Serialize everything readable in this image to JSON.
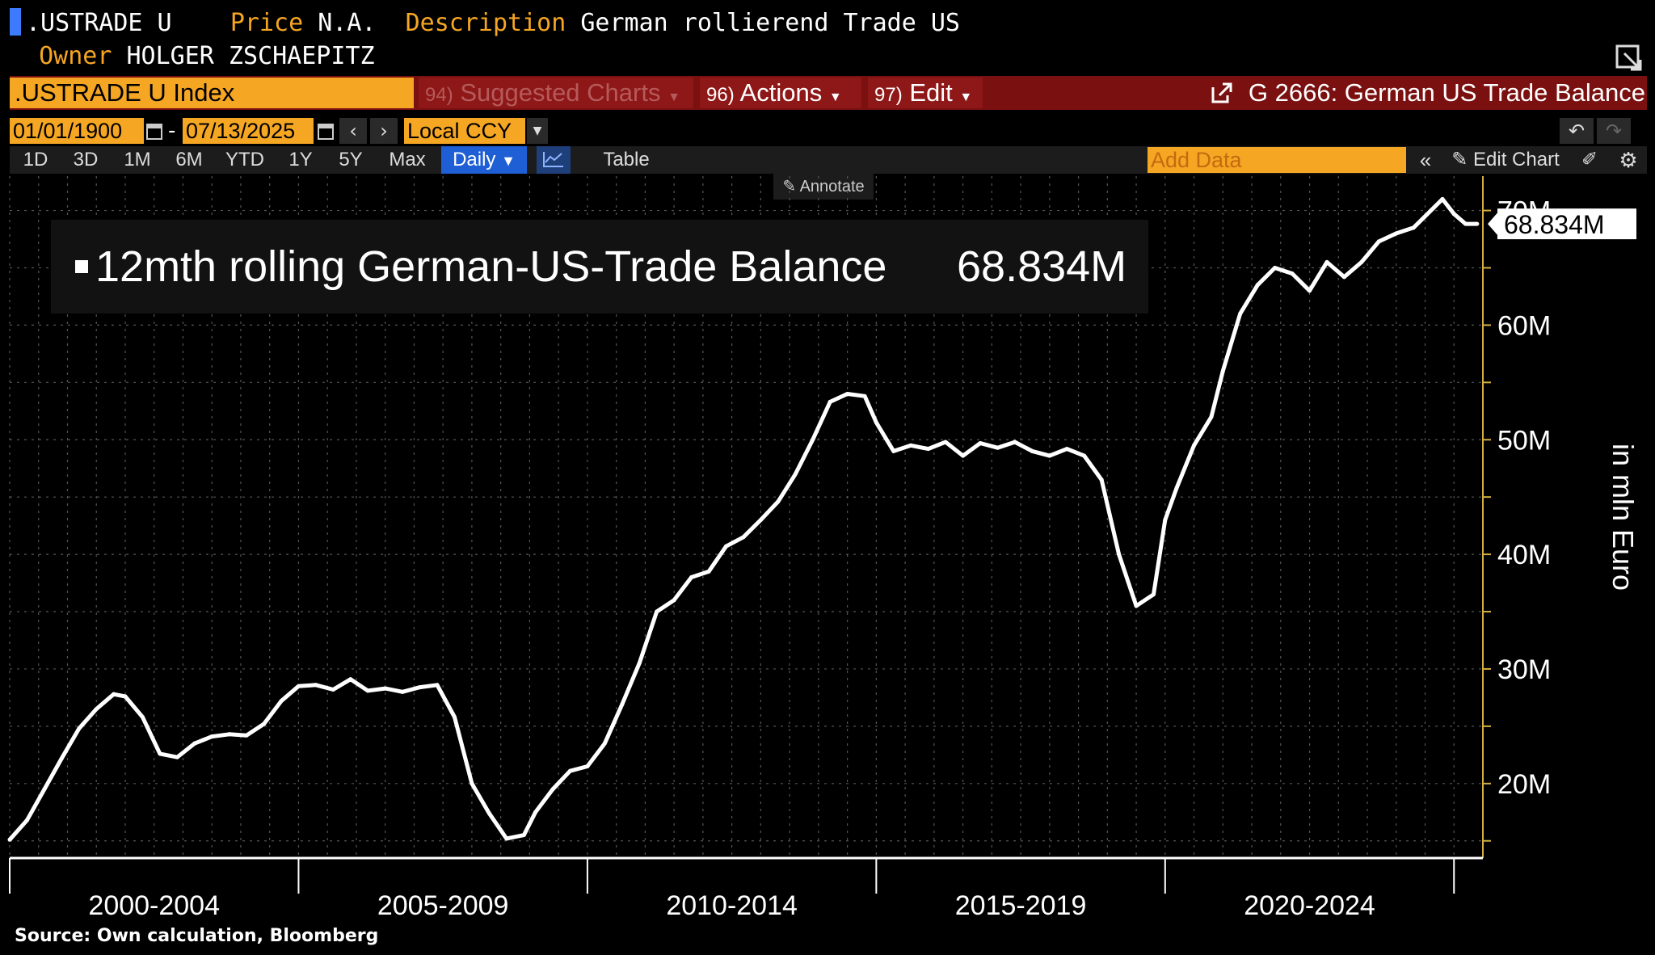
{
  "header": {
    "ticker": ".USTRADE U",
    "price_label": "Price",
    "price_value": "N.A.",
    "description_label": "Description",
    "description_value": "German rollierend Trade US",
    "owner_label": "Owner",
    "owner_value": "HOLGER ZSCHAEPITZ"
  },
  "toolbar": {
    "security": ".USTRADE U Index",
    "suggested_num": "94)",
    "suggested_label": "Suggested Charts",
    "actions_num": "96)",
    "actions_label": "Actions",
    "edit_num": "97)",
    "edit_label": "Edit",
    "chart_title": "G 2666: German US Trade Balance"
  },
  "dates": {
    "start": "01/01/1900",
    "separator": "-",
    "end": "07/13/2025",
    "currency": "Local CCY"
  },
  "ranges": [
    "1D",
    "3D",
    "1M",
    "6M",
    "YTD",
    "1Y",
    "5Y",
    "Max"
  ],
  "frequency": "Daily",
  "table_label": "Table",
  "add_data_placeholder": "Add Data",
  "edit_chart_label": "Edit Chart",
  "annotate_label": "Annotate",
  "legend": {
    "series_name": "12mth rolling German-US-Trade Balance",
    "last_value": "68.834M"
  },
  "source": "Source: Own calculation, Bloomberg",
  "colors": {
    "accent": "#f5a623",
    "toolbar_red": "#7a1010",
    "line": "#ffffff",
    "selected": "#1f5fd6"
  },
  "chart_data": {
    "type": "line",
    "ylabel": "in mln Euro",
    "ylim": [
      13.5,
      73
    ],
    "yticks": [
      20,
      30,
      40,
      50,
      60,
      70
    ],
    "ytick_labels": [
      "20M",
      "30M",
      "40M",
      "50M",
      "60M",
      "70M"
    ],
    "xlim": [
      2000.0,
      2025.5
    ],
    "x_period_labels": [
      "2000-2004",
      "2005-2009",
      "2010-2014",
      "2015-2019",
      "2020-2024"
    ],
    "x_period_bounds": [
      2000,
      2005,
      2010,
      2015,
      2020,
      2025
    ],
    "last_value_label": "68.834M",
    "series": [
      {
        "name": "12mth rolling German-US-Trade Balance",
        "x": [
          2000.0,
          2000.3,
          2000.6,
          2000.9,
          2001.2,
          2001.5,
          2001.8,
          2002.0,
          2002.3,
          2002.6,
          2002.9,
          2003.2,
          2003.5,
          2003.8,
          2004.1,
          2004.4,
          2004.7,
          2005.0,
          2005.3,
          2005.6,
          2005.9,
          2006.2,
          2006.5,
          2006.8,
          2007.1,
          2007.4,
          2007.7,
          2008.0,
          2008.3,
          2008.6,
          2008.9,
          2009.1,
          2009.4,
          2009.7,
          2010.0,
          2010.3,
          2010.6,
          2010.9,
          2011.2,
          2011.5,
          2011.8,
          2012.1,
          2012.4,
          2012.7,
          2013.0,
          2013.3,
          2013.6,
          2013.9,
          2014.2,
          2014.5,
          2014.8,
          2015.0,
          2015.3,
          2015.6,
          2015.9,
          2016.2,
          2016.5,
          2016.8,
          2017.1,
          2017.4,
          2017.7,
          2018.0,
          2018.3,
          2018.6,
          2018.9,
          2019.2,
          2019.5,
          2019.8,
          2020.0,
          2020.2,
          2020.5,
          2020.8,
          2021.0,
          2021.3,
          2021.6,
          2021.9,
          2022.2,
          2022.5,
          2022.8,
          2023.1,
          2023.4,
          2023.7,
          2024.0,
          2024.3,
          2024.6,
          2024.8,
          2025.0,
          2025.2,
          2025.4
        ],
        "values": [
          15.1,
          16.8,
          19.5,
          22.2,
          24.8,
          26.5,
          27.8,
          27.6,
          25.8,
          22.6,
          22.3,
          23.5,
          24.1,
          24.3,
          24.2,
          25.2,
          27.2,
          28.5,
          28.6,
          28.2,
          29.1,
          28.1,
          28.3,
          28.0,
          28.4,
          28.6,
          25.8,
          20.0,
          17.4,
          15.2,
          15.5,
          17.5,
          19.5,
          21.1,
          21.5,
          23.5,
          26.9,
          30.5,
          35.0,
          36.0,
          38.0,
          38.5,
          40.7,
          41.5,
          43.0,
          44.6,
          47.0,
          50.0,
          53.3,
          54.0,
          53.8,
          51.5,
          49.0,
          49.5,
          49.2,
          49.8,
          48.6,
          49.7,
          49.3,
          49.8,
          49.0,
          48.6,
          49.2,
          48.6,
          46.5,
          40.0,
          35.5,
          36.5,
          43.0,
          45.8,
          49.5,
          52.0,
          56.0,
          61.0,
          63.5,
          65.0,
          64.5,
          63.0,
          65.5,
          64.2,
          65.5,
          67.3,
          68.0,
          68.5,
          70.0,
          71.0,
          69.7,
          68.834,
          68.834
        ]
      }
    ]
  }
}
